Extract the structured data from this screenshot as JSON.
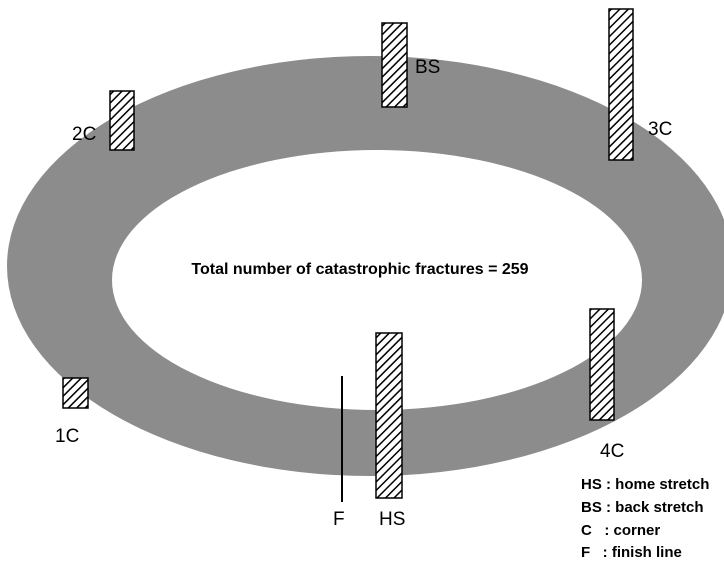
{
  "diagram": {
    "center_text": "Total number of catastrophic fractures = 259",
    "labels": {
      "bs": "BS",
      "c3": "3C",
      "c2": "2C",
      "c1": "1C",
      "c4": "4C",
      "f": "F",
      "hs": "HS"
    },
    "legend": [
      "HS : home stretch",
      "BS : back stretch",
      "C   : corner",
      "F   : finish line"
    ]
  }
}
